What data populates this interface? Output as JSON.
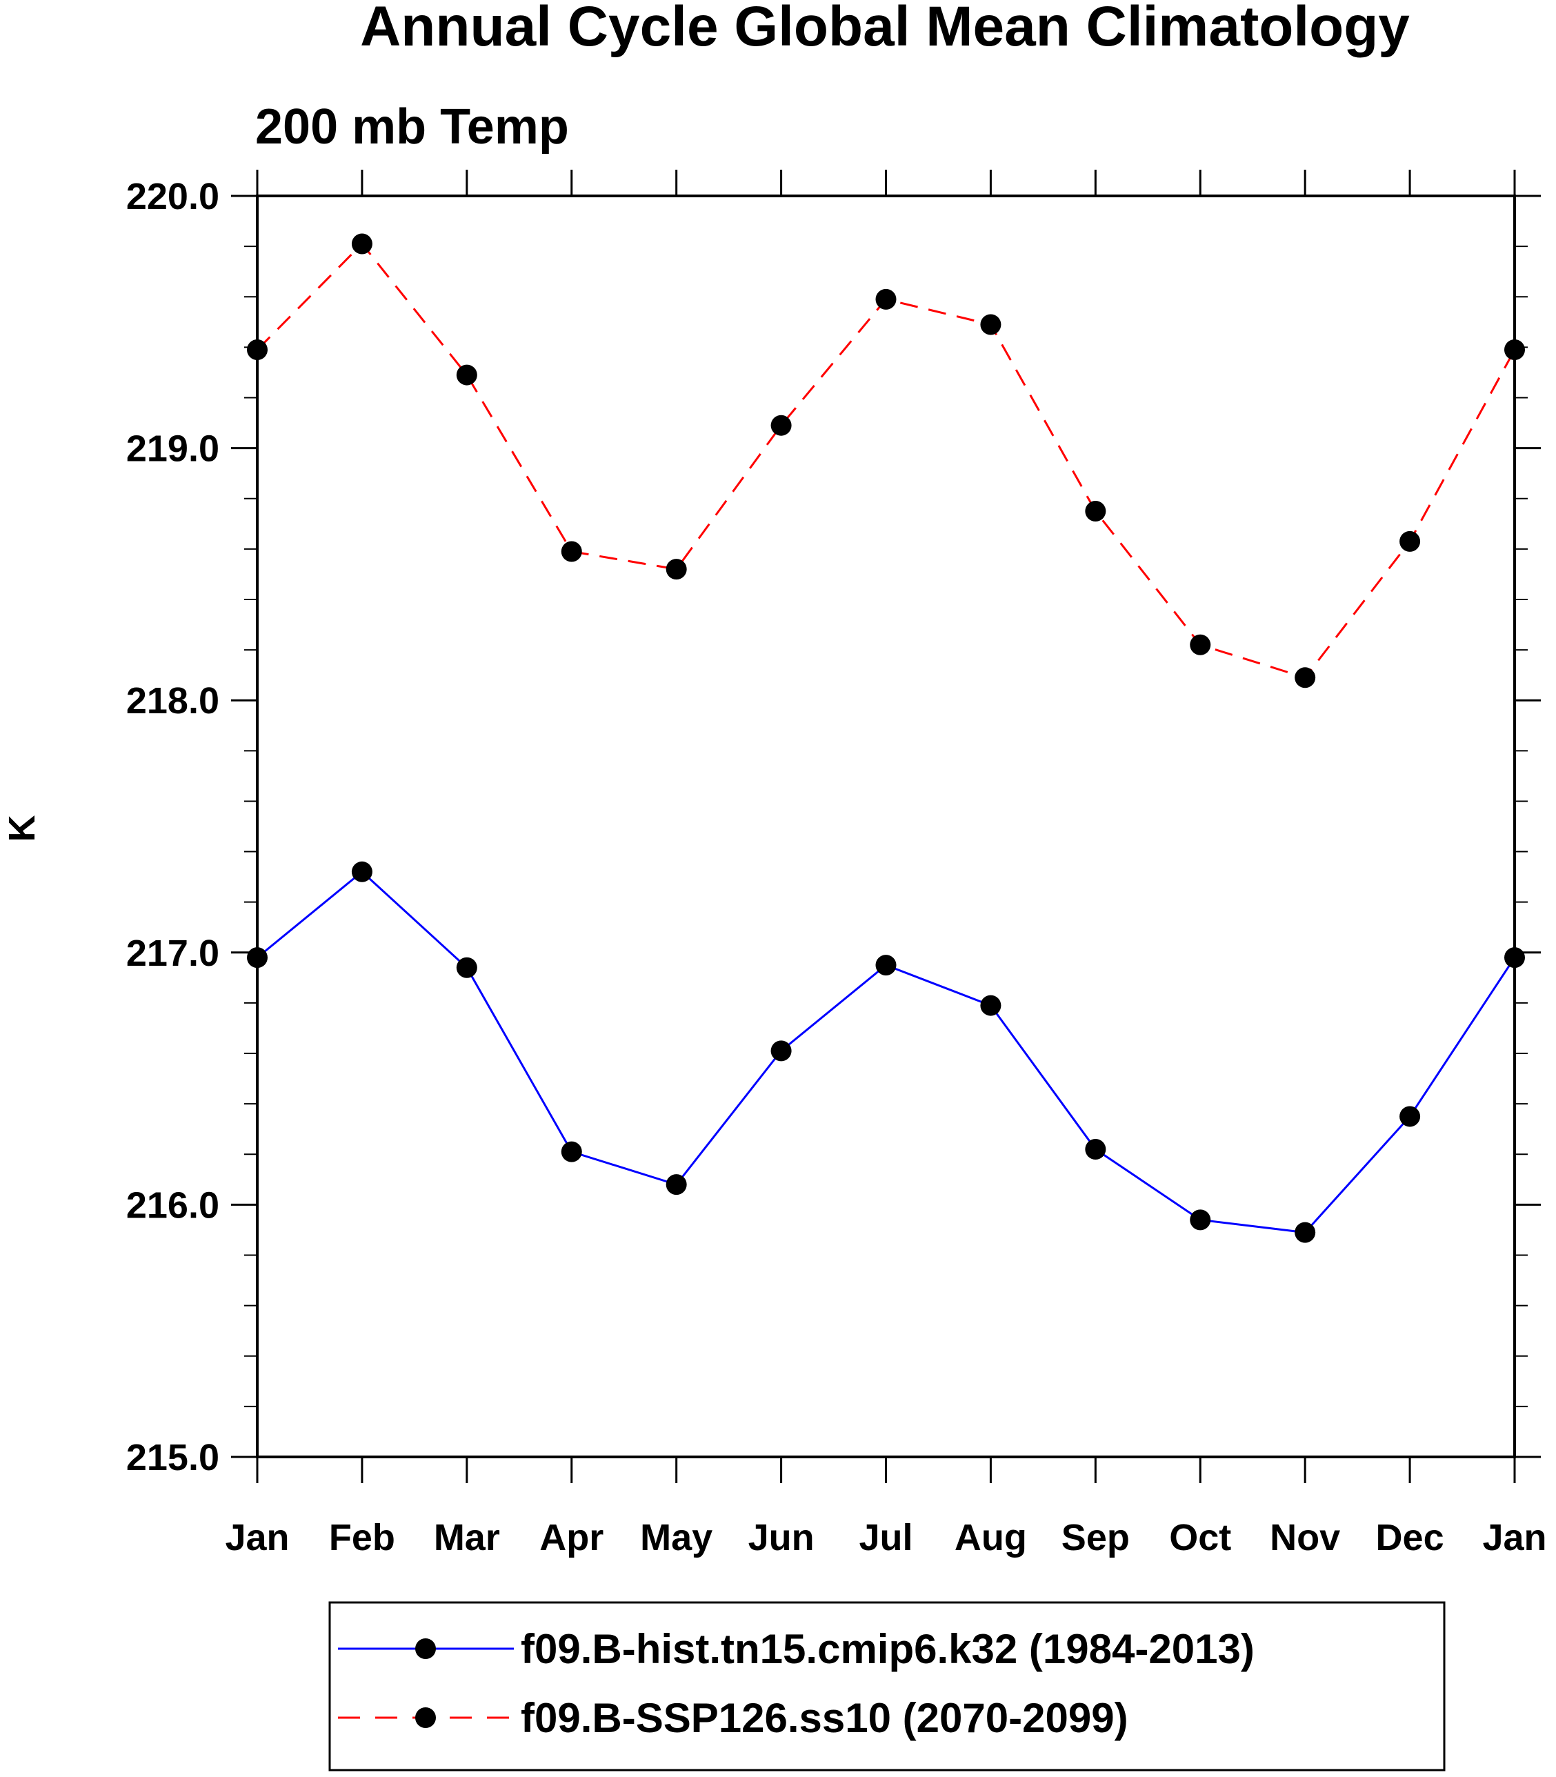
{
  "chart_data": {
    "type": "line",
    "title": "Annual Cycle Global Mean Climatology",
    "subtitle": "200 mb Temp",
    "xlabel": "",
    "ylabel": "K",
    "categories": [
      "Jan",
      "Feb",
      "Mar",
      "Apr",
      "May",
      "Jun",
      "Jul",
      "Aug",
      "Sep",
      "Oct",
      "Nov",
      "Dec",
      "Jan"
    ],
    "ylim": [
      215.0,
      220.0
    ],
    "yticks": [
      {
        "value": 215.0,
        "label": "215.0"
      },
      {
        "value": 216.0,
        "label": "216.0"
      },
      {
        "value": 217.0,
        "label": "217.0"
      },
      {
        "value": 218.0,
        "label": "218.0"
      },
      {
        "value": 219.0,
        "label": "219.0"
      },
      {
        "value": 220.0,
        "label": "220.0"
      }
    ],
    "y_minor_step": 0.2,
    "grid": false,
    "legend_position": "bottom",
    "series": [
      {
        "name": "f09.B-hist.tn15.cmip6.k32 (1984-2013)",
        "color": "#0000ff",
        "dash": "solid",
        "marker": "filled-circle",
        "values": [
          216.98,
          217.32,
          216.94,
          216.21,
          216.08,
          216.61,
          216.95,
          216.79,
          216.22,
          215.94,
          215.89,
          216.35,
          216.98
        ]
      },
      {
        "name": "f09.B-SSP126.ss10 (2070-2099)",
        "color": "#ff0000",
        "dash": "dashed",
        "marker": "filled-circle",
        "values": [
          219.39,
          219.81,
          219.29,
          218.59,
          218.52,
          219.09,
          219.59,
          219.49,
          218.75,
          218.22,
          218.09,
          218.63,
          219.39
        ]
      }
    ]
  }
}
